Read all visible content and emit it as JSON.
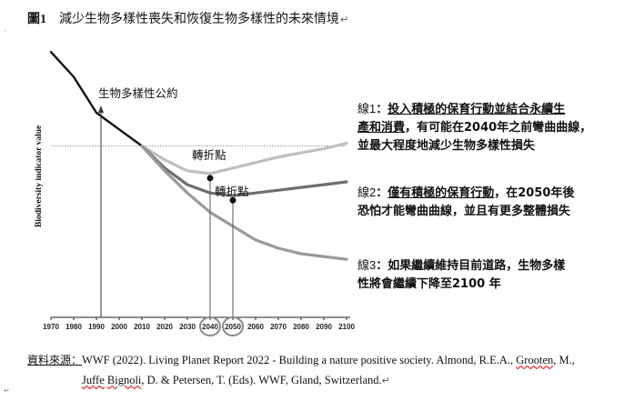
{
  "figure": {
    "number": "圖1",
    "title": "減少生物多樣性喪失和恢復生物多樣性的未來情境",
    "mark": "↵"
  },
  "chart_data": {
    "type": "line",
    "xlabel": "",
    "ylabel": "Biodiversity indicator value",
    "x_ticks": [
      "1970",
      "1980",
      "1990",
      "2000",
      "2010",
      "2020",
      "2030",
      "2040",
      "2050",
      "2060",
      "2070",
      "2080",
      "2090",
      "2100"
    ],
    "xlim": [
      1970,
      2100
    ],
    "ylim": [
      0,
      100
    ],
    "baseline": 62,
    "series": [
      {
        "color": "#111111",
        "x": [
          1970,
          1980,
          1990,
          2000,
          2010
        ],
        "y": [
          96,
          87,
          74,
          68,
          62
        ]
      },
      {
        "color": "#bfbfbf",
        "x": [
          2010,
          2020,
          2030,
          2040,
          2050,
          2060,
          2070,
          2080,
          2090,
          2100
        ],
        "y": [
          62,
          57,
          53,
          52,
          54,
          56,
          58,
          59.5,
          61,
          63
        ]
      },
      {
        "color": "#6f6f6f",
        "x": [
          2010,
          2020,
          2030,
          2040,
          2050,
          2060,
          2070,
          2080,
          2090,
          2100
        ],
        "y": [
          62,
          54,
          48,
          45,
          44,
          45,
          46,
          47,
          48,
          49
        ]
      },
      {
        "color": "#9a9a9a",
        "x": [
          2010,
          2020,
          2030,
          2040,
          2050,
          2060,
          2070,
          2080,
          2090,
          2100
        ],
        "y": [
          62,
          53,
          45,
          38,
          33,
          28,
          25,
          23,
          22,
          21
        ]
      }
    ],
    "highlighted_ticks": [
      "2040",
      "2050"
    ],
    "annotations": {
      "cbd": {
        "text": "生物多樣性公約",
        "x": 1992
      },
      "turn1": {
        "text": "轉折點",
        "x": 2040,
        "y": 52
      },
      "turn2": {
        "text": "轉折點",
        "x": 2050,
        "y": 44
      }
    },
    "lines": {
      "line1": {
        "label": "線1",
        "colon": "：",
        "text_a": "投入積極的保育行動並結合永續生",
        "text_b": "產和消費",
        "text_c": "，有可能在2040年之前彎曲曲線，",
        "text_d": "並最大程度地減少生物多樣性損失"
      },
      "line2": {
        "label": "線2",
        "colon": "：",
        "text_a": "僅有積極的保育行動",
        "text_b": "，在2050年後",
        "text_c": "恐怕才能彎曲曲線，並且有更多整體損失"
      },
      "line3": {
        "label": "線3",
        "colon": "：",
        "text_a": "如果繼續維持目前道路，生物多樣",
        "text_b": "性將會繼續下降至2100 年"
      }
    }
  },
  "source": {
    "prefix": "資料來源：",
    "part1": "WWF (2022). Living Planet Report 2022 - Building a nature positive society. Almond, R.E.A., ",
    "grooten": "Grooten",
    "part2": ", M.,",
    "juffe": "Juffe",
    "sp": " ",
    "bignoli": "Bignoli",
    "part3": ", D. & Petersen, T. (Eds). WWF, Gland, Switzerland.",
    "mark": "↵"
  },
  "margin_marks": {
    "top": "·",
    "bottom": "↵"
  }
}
